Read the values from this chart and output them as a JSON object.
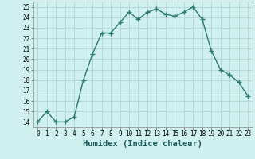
{
  "x": [
    0,
    1,
    2,
    3,
    4,
    5,
    6,
    7,
    8,
    9,
    10,
    11,
    12,
    13,
    14,
    15,
    16,
    17,
    18,
    19,
    20,
    21,
    22,
    23
  ],
  "y": [
    14,
    15,
    14,
    14,
    14.5,
    18,
    20.5,
    22.5,
    22.5,
    23.5,
    24.5,
    23.8,
    24.5,
    24.8,
    24.3,
    24.1,
    24.5,
    25,
    23.8,
    20.8,
    19,
    18.5,
    17.8,
    16.5
  ],
  "line_color": "#2d7a6e",
  "marker": "+",
  "marker_size": 4,
  "bg_color": "#cff0ee",
  "grid_color": "#b0d5d0",
  "xlabel": "Humidex (Indice chaleur)",
  "xlim": [
    -0.5,
    23.5
  ],
  "ylim": [
    13.5,
    25.5
  ],
  "yticks": [
    14,
    15,
    16,
    17,
    18,
    19,
    20,
    21,
    22,
    23,
    24,
    25
  ],
  "xticks": [
    0,
    1,
    2,
    3,
    4,
    5,
    6,
    7,
    8,
    9,
    10,
    11,
    12,
    13,
    14,
    15,
    16,
    17,
    18,
    19,
    20,
    21,
    22,
    23
  ],
  "tick_label_fontsize": 5.5,
  "xlabel_fontsize": 7.5,
  "line_width": 1.0
}
